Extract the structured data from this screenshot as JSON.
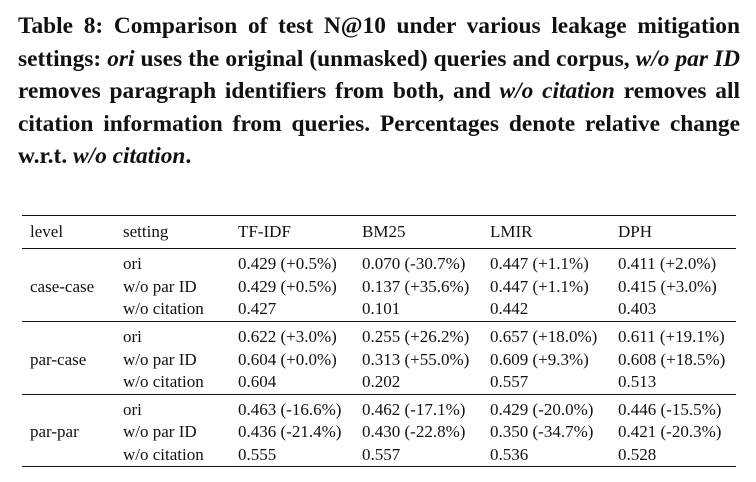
{
  "caption": {
    "parts": [
      "Table 8: Comparison of test N@10 under various leakage mitigation settings: ",
      "ori",
      " uses the original (unmasked) queries and corpus, ",
      "w/o par ID",
      " removes paragraph identifiers from both, and ",
      "w/o citation",
      " removes all citation information from queries. Percentages denote relative change w.r.t. ",
      "w/o citation",
      "."
    ]
  },
  "table": {
    "header": [
      "level",
      "setting",
      "TF-IDF",
      "BM25",
      "LMIR",
      "DPH"
    ],
    "groups": [
      {
        "level": "case-case",
        "rows": [
          [
            "ori",
            "0.429 (+0.5%)",
            "0.070 (-30.7%)",
            "0.447 (+1.1%)",
            "0.411 (+2.0%)"
          ],
          [
            "w/o par ID",
            "0.429 (+0.5%)",
            "0.137 (+35.6%)",
            "0.447 (+1.1%)",
            "0.415 (+3.0%)"
          ],
          [
            "w/o citation",
            "0.427",
            "0.101",
            "0.442",
            "0.403"
          ]
        ]
      },
      {
        "level": "par-case",
        "rows": [
          [
            "ori",
            "0.622 (+3.0%)",
            "0.255 (+26.2%)",
            "0.657 (+18.0%)",
            "0.611 (+19.1%)"
          ],
          [
            "w/o par ID",
            "0.604 (+0.0%)",
            "0.313 (+55.0%)",
            "0.609 (+9.3%)",
            "0.608 (+18.5%)"
          ],
          [
            "w/o citation",
            "0.604",
            "0.202",
            "0.557",
            "0.513"
          ]
        ]
      },
      {
        "level": "par-par",
        "rows": [
          [
            "ori",
            "0.463 (-16.6%)",
            "0.462 (-17.1%)",
            "0.429 (-20.0%)",
            "0.446 (-15.5%)"
          ],
          [
            "w/o par ID",
            "0.436 (-21.4%)",
            "0.430 (-22.8%)",
            "0.350 (-34.7%)",
            "0.421 (-20.3%)"
          ],
          [
            "w/o citation",
            "0.555",
            "0.557",
            "0.536",
            "0.528"
          ]
        ]
      }
    ]
  }
}
